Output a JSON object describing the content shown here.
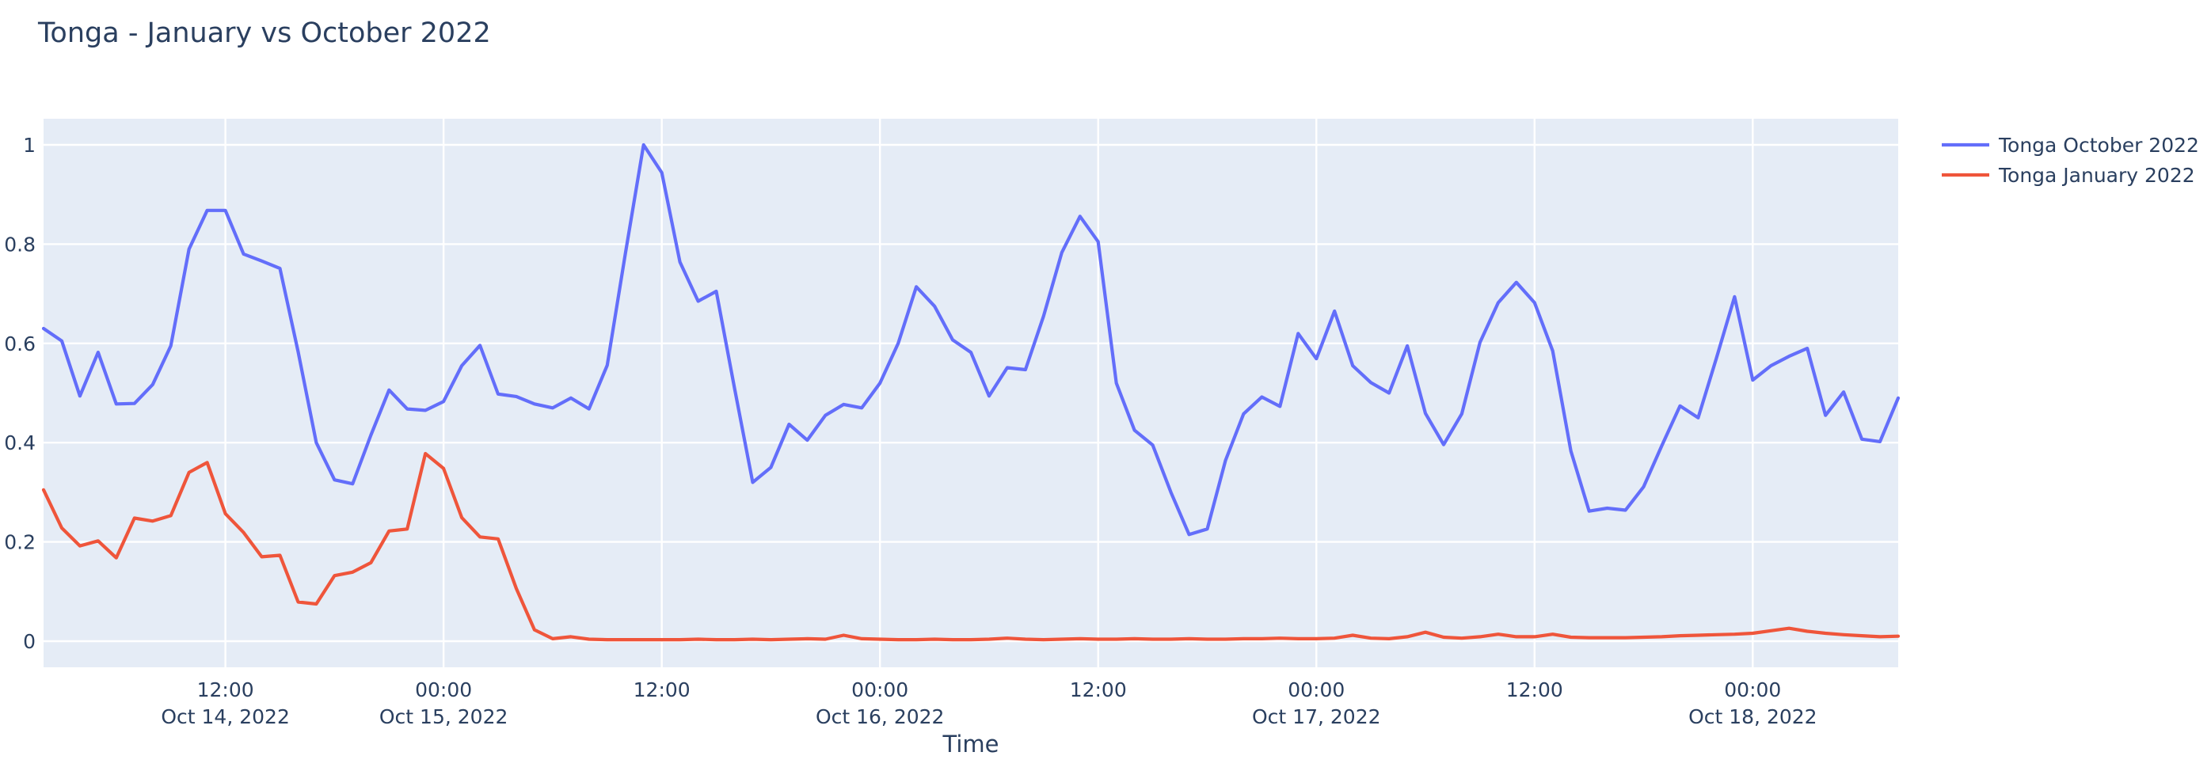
{
  "title": "Tonga - January vs October 2022",
  "colors": {
    "paper_bg": "#ffffff",
    "plot_bg": "#e5ecf6",
    "grid": "#ffffff",
    "text": "#2a3f5f",
    "series_october": "#636efa",
    "series_january": "#ef553b"
  },
  "chart_data": {
    "type": "line",
    "title": "Tonga - January vs October 2022",
    "xlabel": "Time",
    "ylabel": "",
    "grid": true,
    "legend_position": "top-right-outside",
    "x_start": "Oct 14, 2022 02:00",
    "x_step_hours": 1,
    "x_points": 103,
    "x_end": "Oct 18, 2022 08:00",
    "ylim": [
      -0.053,
      1.053
    ],
    "yticks": [
      {
        "value": 0,
        "label": "0"
      },
      {
        "value": 0.2,
        "label": "0.2"
      },
      {
        "value": 0.4,
        "label": "0.4"
      },
      {
        "value": 0.6,
        "label": "0.6"
      },
      {
        "value": 0.8,
        "label": "0.8"
      },
      {
        "value": 1,
        "label": "1"
      }
    ],
    "xticks": [
      {
        "index": 10,
        "time": "12:00",
        "date": "Oct 14, 2022"
      },
      {
        "index": 22,
        "time": "00:00",
        "date": "Oct 15, 2022"
      },
      {
        "index": 34,
        "time": "12:00",
        "date": ""
      },
      {
        "index": 46,
        "time": "00:00",
        "date": "Oct 16, 2022"
      },
      {
        "index": 58,
        "time": "12:00",
        "date": ""
      },
      {
        "index": 70,
        "time": "00:00",
        "date": "Oct 17, 2022"
      },
      {
        "index": 82,
        "time": "12:00",
        "date": ""
      },
      {
        "index": 94,
        "time": "00:00",
        "date": "Oct 18, 2022"
      }
    ],
    "series": [
      {
        "name": "Tonga October 2022",
        "color": "#636efa",
        "values": [
          0.63,
          0.605,
          0.494,
          0.582,
          0.478,
          0.479,
          0.517,
          0.595,
          0.79,
          0.868,
          0.868,
          0.78,
          0.766,
          0.751,
          0.583,
          0.4,
          0.325,
          0.317,
          0.415,
          0.506,
          0.468,
          0.465,
          0.483,
          0.555,
          0.596,
          0.498,
          0.493,
          0.478,
          0.47,
          0.49,
          0.468,
          0.556,
          0.781,
          1.0,
          0.944,
          0.764,
          0.685,
          0.705,
          0.51,
          0.32,
          0.35,
          0.437,
          0.405,
          0.455,
          0.477,
          0.47,
          0.52,
          0.6,
          0.714,
          0.675,
          0.607,
          0.582,
          0.494,
          0.551,
          0.547,
          0.655,
          0.783,
          0.856,
          0.805,
          0.52,
          0.425,
          0.395,
          0.3,
          0.215,
          0.226,
          0.364,
          0.458,
          0.492,
          0.473,
          0.62,
          0.569,
          0.665,
          0.555,
          0.521,
          0.5,
          0.595,
          0.459,
          0.396,
          0.458,
          0.602,
          0.682,
          0.723,
          0.682,
          0.585,
          0.383,
          0.262,
          0.268,
          0.264,
          0.311,
          0.394,
          0.474,
          0.45,
          0.57,
          0.694,
          0.526,
          0.555,
          0.574,
          0.59,
          0.455,
          0.502,
          0.407,
          0.402,
          0.49
        ]
      },
      {
        "name": "Tonga January 2022",
        "color": "#ef553b",
        "values": [
          0.305,
          0.228,
          0.192,
          0.202,
          0.168,
          0.248,
          0.242,
          0.253,
          0.34,
          0.36,
          0.257,
          0.219,
          0.17,
          0.173,
          0.079,
          0.075,
          0.132,
          0.139,
          0.158,
          0.222,
          0.226,
          0.378,
          0.348,
          0.249,
          0.21,
          0.206,
          0.106,
          0.023,
          0.005,
          0.009,
          0.004,
          0.003,
          0.003,
          0.003,
          0.003,
          0.003,
          0.004,
          0.003,
          0.003,
          0.004,
          0.003,
          0.004,
          0.005,
          0.004,
          0.012,
          0.005,
          0.004,
          0.003,
          0.003,
          0.004,
          0.003,
          0.003,
          0.004,
          0.006,
          0.004,
          0.003,
          0.004,
          0.005,
          0.004,
          0.004,
          0.005,
          0.004,
          0.004,
          0.005,
          0.004,
          0.004,
          0.005,
          0.005,
          0.006,
          0.005,
          0.005,
          0.006,
          0.012,
          0.006,
          0.005,
          0.009,
          0.018,
          0.008,
          0.006,
          0.009,
          0.014,
          0.009,
          0.009,
          0.014,
          0.008,
          0.007,
          0.007,
          0.007,
          0.008,
          0.009,
          0.011,
          0.012,
          0.013,
          0.014,
          0.016,
          0.021,
          0.026,
          0.02,
          0.016,
          0.013,
          0.011,
          0.009,
          0.01
        ]
      }
    ]
  }
}
